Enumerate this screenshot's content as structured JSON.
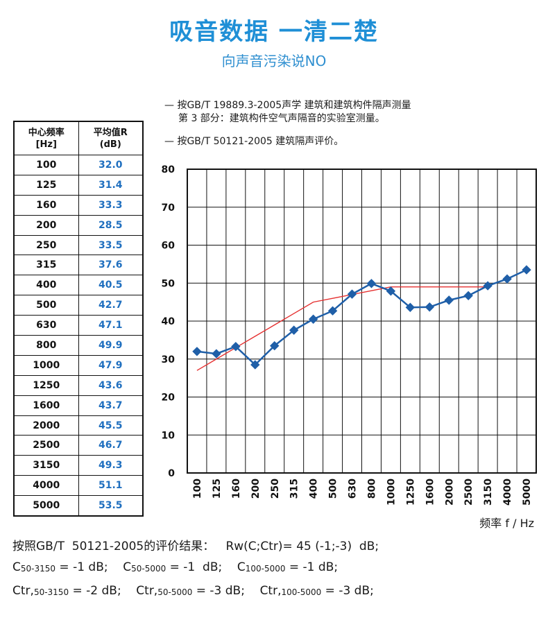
{
  "header": {
    "title": "吸音数据 一清二楚",
    "subtitle": "向声音污染说NO"
  },
  "standards": {
    "line1": "— 按GB/T 19889.3-2005声学  建筑和建筑构件隔声测量",
    "line1b": "第 3 部分：建筑构件空气声隔音的实验室测量。",
    "line2": "— 按GB/T 50121-2005  建筑隔声评价。"
  },
  "table": {
    "col1_header_line1": "中心频率",
    "col1_header_line2": "[Hz]",
    "col2_header_line1": "平均值R",
    "col2_header_line2": "(dB)",
    "rows": [
      {
        "freq": "100",
        "r": "32.0"
      },
      {
        "freq": "125",
        "r": "31.4"
      },
      {
        "freq": "160",
        "r": "33.3"
      },
      {
        "freq": "200",
        "r": "28.5"
      },
      {
        "freq": "250",
        "r": "33.5"
      },
      {
        "freq": "315",
        "r": "37.6"
      },
      {
        "freq": "400",
        "r": "40.5"
      },
      {
        "freq": "500",
        "r": "42.7"
      },
      {
        "freq": "630",
        "r": "47.1"
      },
      {
        "freq": "800",
        "r": "49.9"
      },
      {
        "freq": "1000",
        "r": "47.9"
      },
      {
        "freq": "1250",
        "r": "43.6"
      },
      {
        "freq": "1600",
        "r": "43.7"
      },
      {
        "freq": "2000",
        "r": "45.5"
      },
      {
        "freq": "2500",
        "r": "46.7"
      },
      {
        "freq": "3150",
        "r": "49.3"
      },
      {
        "freq": "4000",
        "r": "51.1"
      },
      {
        "freq": "5000",
        "r": "53.5"
      }
    ]
  },
  "results": {
    "line1": "按照GB/T  50121-2005的评价结果：   Rw(C;Ctr)= 45 (-1;-3)  dB;",
    "c1_prefix": "C",
    "c1_sub": "50-3150",
    "c1_val": " = -1 dB;    ",
    "c2_prefix": "C",
    "c2_sub": "50-5000",
    "c2_val": " = -1  dB;    ",
    "c3_prefix": "C",
    "c3_sub": "100-5000",
    "c3_val": " = -1 dB;",
    "t1_prefix": "Ctr,",
    "t1_sub": "50-3150",
    "t1_val": " = -2 dB;    ",
    "t2_prefix": "Ctr,",
    "t2_sub": "50-5000",
    "t2_val": " = -3 dB;    ",
    "t3_prefix": "Ctr,",
    "t3_sub": "100-5000",
    "t3_val": " = -3 dB;"
  },
  "chart_data": {
    "type": "line",
    "categories": [
      "100",
      "125",
      "160",
      "200",
      "250",
      "315",
      "400",
      "500",
      "630",
      "800",
      "1000",
      "1250",
      "1600",
      "2000",
      "2500",
      "3150",
      "4000",
      "5000"
    ],
    "series": [
      {
        "values": [
          32.0,
          31.4,
          33.3,
          28.5,
          33.5,
          37.6,
          40.5,
          42.7,
          47.1,
          49.9,
          47.9,
          43.6,
          43.7,
          45.5,
          46.7,
          49.3,
          51.1,
          53.5
        ],
        "color": "#1f5fa8",
        "marker": "diamond"
      },
      {
        "values": [
          27,
          30,
          33,
          36,
          39,
          42,
          45,
          46,
          47,
          48,
          49,
          49,
          49,
          49,
          49,
          49,
          null,
          null
        ],
        "color": "#e53030",
        "marker": "none"
      }
    ],
    "ylim": [
      0,
      80
    ],
    "yticks": [
      "0",
      "10",
      "20",
      "30",
      "40",
      "50",
      "60",
      "70",
      "80"
    ],
    "xlabel": "频率 f / Hz",
    "ylabel": "",
    "grid": true,
    "legend": "none"
  }
}
